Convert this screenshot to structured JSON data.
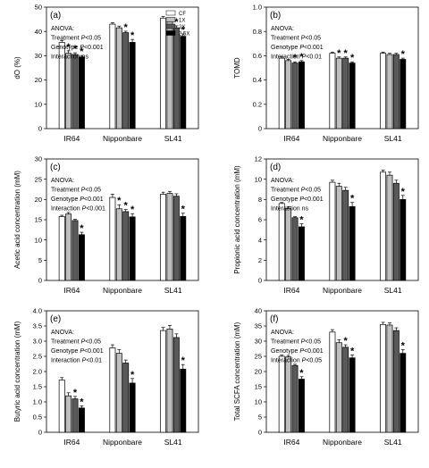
{
  "colors": {
    "CF": "#ffffff",
    "1X": "#bfbfbf",
    "2X": "#595959",
    "2.5X": "#000000"
  },
  "legend": [
    "CF",
    "1X",
    "2X",
    "2.5X"
  ],
  "chart_data": [
    {
      "type": "bar",
      "panel_label": "(a)",
      "ylabel": "dO (%)",
      "ylim": [
        0,
        50
      ],
      "yticks": [
        0,
        10,
        20,
        30,
        40,
        50
      ],
      "tick_format": "0",
      "categories": [
        "IR64",
        "Nipponbare",
        "SL41"
      ],
      "series": [
        {
          "name": "CF",
          "values": [
            35.5,
            43.0,
            45.5
          ],
          "err": [
            0.8,
            0.6,
            0.6
          ]
        },
        {
          "name": "1X",
          "values": [
            31.0,
            41.5,
            44.0
          ],
          "err": [
            1.0,
            0.7,
            0.7
          ]
        },
        {
          "name": "2X",
          "values": [
            30.5,
            39.5,
            41.5
          ],
          "err": [
            0.7,
            0.6,
            0.8
          ]
        },
        {
          "name": "2.5X",
          "values": [
            29.5,
            35.5,
            38.0
          ],
          "err": [
            0.6,
            1.2,
            1.0
          ]
        }
      ],
      "stars": [
        [
          false,
          true,
          true,
          true
        ],
        [
          false,
          false,
          true,
          true
        ],
        [
          false,
          false,
          true,
          true
        ]
      ],
      "annotation": [
        "ANOVA:",
        "Treatment P<0.05",
        "Genotype P<0.001",
        "Interaction ns"
      ],
      "show_legend": true
    },
    {
      "type": "bar",
      "panel_label": "(b)",
      "ylabel": "TOMD",
      "ylim": [
        0,
        1.0
      ],
      "yticks": [
        0,
        0.2,
        0.4,
        0.6,
        0.8,
        1.0
      ],
      "tick_format": "0.0",
      "categories": [
        "IR64",
        "Nipponbare",
        "SL41"
      ],
      "series": [
        {
          "name": "CF",
          "values": [
            0.58,
            0.62,
            0.62
          ],
          "err": [
            0.01,
            0.01,
            0.01
          ]
        },
        {
          "name": "1X",
          "values": [
            0.56,
            0.58,
            0.61
          ],
          "err": [
            0.01,
            0.01,
            0.01
          ]
        },
        {
          "name": "2X",
          "values": [
            0.54,
            0.58,
            0.61
          ],
          "err": [
            0.01,
            0.01,
            0.01
          ]
        },
        {
          "name": "2.5X",
          "values": [
            0.55,
            0.54,
            0.57
          ],
          "err": [
            0.01,
            0.01,
            0.01
          ]
        }
      ],
      "stars": [
        [
          false,
          false,
          true,
          true
        ],
        [
          false,
          true,
          true,
          true
        ],
        [
          false,
          false,
          false,
          true
        ]
      ],
      "annotation": [
        "ANOVA:",
        "Treatment P<0.05",
        "Genotype P<0.001",
        "Interaction P<0.01"
      ],
      "show_legend": false
    },
    {
      "type": "bar",
      "panel_label": "(c)",
      "ylabel": "Acetic acid concentration (mM)",
      "ylim": [
        0,
        30
      ],
      "yticks": [
        0,
        5,
        10,
        15,
        20,
        25,
        30
      ],
      "tick_format": "0",
      "categories": [
        "IR64",
        "Nipponbare",
        "SL41"
      ],
      "series": [
        {
          "name": "CF",
          "values": [
            15.8,
            20.5,
            21.3
          ],
          "err": [
            0.3,
            0.8,
            0.5
          ]
        },
        {
          "name": "1X",
          "values": [
            16.4,
            17.7,
            21.5
          ],
          "err": [
            0.4,
            1.0,
            0.5
          ]
        },
        {
          "name": "2X",
          "values": [
            14.8,
            17.0,
            20.8
          ],
          "err": [
            0.3,
            0.5,
            0.6
          ]
        },
        {
          "name": "2.5X",
          "values": [
            11.3,
            15.7,
            15.8
          ],
          "err": [
            0.6,
            0.8,
            0.8
          ]
        }
      ],
      "stars": [
        [
          false,
          false,
          false,
          true
        ],
        [
          false,
          true,
          true,
          true
        ],
        [
          false,
          false,
          false,
          true
        ]
      ],
      "annotation": [
        "ANOVA:",
        "Treatment P<0.05",
        "Genotype P<0.001",
        "Interaction P<0.001"
      ],
      "show_legend": false
    },
    {
      "type": "bar",
      "panel_label": "(d)",
      "ylabel": "Propionic acid concentration (mM)",
      "ylim": [
        0,
        12
      ],
      "yticks": [
        0,
        2,
        4,
        6,
        8,
        10,
        12
      ],
      "tick_format": "0",
      "categories": [
        "IR64",
        "Nipponbare",
        "SL41"
      ],
      "series": [
        {
          "name": "CF",
          "values": [
            7.6,
            9.7,
            10.7
          ],
          "err": [
            0.1,
            0.2,
            0.2
          ]
        },
        {
          "name": "1X",
          "values": [
            7.1,
            9.3,
            10.4
          ],
          "err": [
            0.2,
            0.3,
            0.3
          ]
        },
        {
          "name": "2X",
          "values": [
            6.2,
            8.9,
            9.6
          ],
          "err": [
            0.1,
            0.3,
            0.3
          ]
        },
        {
          "name": "2.5X",
          "values": [
            5.3,
            7.3,
            8.0
          ],
          "err": [
            0.3,
            0.4,
            0.4
          ]
        }
      ],
      "stars": [
        [
          false,
          false,
          false,
          true
        ],
        [
          false,
          false,
          false,
          true
        ],
        [
          false,
          false,
          false,
          true
        ]
      ],
      "annotation": [
        "ANOVA:",
        "Treatment P<0.05",
        "Genotype P<0.001",
        "Interaction ns"
      ],
      "show_legend": false
    },
    {
      "type": "bar",
      "panel_label": "(e)",
      "ylabel": "Butyric acid concentration (mM)",
      "ylim": [
        0,
        4.0
      ],
      "yticks": [
        0,
        0.5,
        1.0,
        1.5,
        2.0,
        2.5,
        3.0,
        3.5,
        4.0
      ],
      "tick_format": "0.0",
      "categories": [
        "IR64",
        "Nipponbare",
        "SL41"
      ],
      "series": [
        {
          "name": "CF",
          "values": [
            1.72,
            2.78,
            3.35
          ],
          "err": [
            0.08,
            0.1,
            0.1
          ]
        },
        {
          "name": "1X",
          "values": [
            1.2,
            2.6,
            3.4
          ],
          "err": [
            0.1,
            0.12,
            0.12
          ]
        },
        {
          "name": "2X",
          "values": [
            1.1,
            2.28,
            3.12
          ],
          "err": [
            0.08,
            0.1,
            0.12
          ]
        },
        {
          "name": "2.5X",
          "values": [
            0.8,
            1.62,
            2.08
          ],
          "err": [
            0.07,
            0.15,
            0.15
          ]
        }
      ],
      "stars": [
        [
          false,
          false,
          true,
          true
        ],
        [
          false,
          false,
          false,
          true
        ],
        [
          false,
          false,
          false,
          true
        ]
      ],
      "annotation": [
        "ANOVA:",
        "Treatment P<0.05",
        "Genotype P<0.001",
        "Interaction P<0.01"
      ],
      "show_legend": false
    },
    {
      "type": "bar",
      "panel_label": "(f)",
      "ylabel": "Total SCFA concentration (mM)",
      "ylim": [
        0,
        40
      ],
      "yticks": [
        0,
        5,
        10,
        15,
        20,
        25,
        30,
        35,
        40
      ],
      "tick_format": "0",
      "categories": [
        "IR64",
        "Nipponbare",
        "SL41"
      ],
      "series": [
        {
          "name": "CF",
          "values": [
            25.0,
            33.0,
            35.5
          ],
          "err": [
            0.4,
            0.8,
            0.7
          ]
        },
        {
          "name": "1X",
          "values": [
            24.8,
            29.5,
            35.3
          ],
          "err": [
            0.5,
            1.0,
            0.8
          ]
        },
        {
          "name": "2X",
          "values": [
            22.0,
            28.0,
            33.5
          ],
          "err": [
            0.4,
            0.8,
            0.9
          ]
        },
        {
          "name": "2.5X",
          "values": [
            17.5,
            24.5,
            26.0
          ],
          "err": [
            0.8,
            1.0,
            1.2
          ]
        }
      ],
      "stars": [
        [
          false,
          false,
          false,
          true
        ],
        [
          false,
          false,
          true,
          true
        ],
        [
          false,
          false,
          false,
          true
        ]
      ],
      "annotation": [
        "ANOVA:",
        "Treatment P<0.05",
        "Genotype P<0.001",
        "Interaction P<0.05"
      ],
      "show_legend": false
    }
  ]
}
